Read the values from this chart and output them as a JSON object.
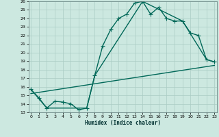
{
  "xlabel": "Humidex (Indice chaleur)",
  "bg_color": "#cce8e0",
  "grid_color": "#aaccc4",
  "line_color": "#006858",
  "xlim": [
    0,
    23
  ],
  "ylim": [
    13,
    26
  ],
  "yticks": [
    13,
    14,
    15,
    16,
    17,
    18,
    19,
    20,
    21,
    22,
    23,
    24,
    25,
    26
  ],
  "xticks": [
    0,
    1,
    2,
    3,
    4,
    5,
    6,
    7,
    8,
    9,
    10,
    11,
    12,
    13,
    14,
    15,
    16,
    17,
    18,
    19,
    20,
    21,
    22,
    23
  ],
  "line1_x": [
    0,
    1,
    2,
    3,
    4,
    5,
    6,
    7,
    8,
    9,
    10,
    11,
    12,
    13,
    14,
    15,
    16,
    17,
    18,
    19,
    20,
    21,
    22,
    23
  ],
  "line1_y": [
    15.7,
    14.7,
    13.5,
    14.3,
    14.2,
    14.0,
    13.3,
    13.5,
    17.3,
    20.8,
    22.7,
    24.0,
    24.5,
    25.8,
    26.0,
    24.5,
    25.3,
    24.0,
    23.7,
    23.7,
    22.3,
    22.0,
    19.2,
    18.9
  ],
  "line2_x": [
    0,
    2,
    7,
    8,
    14,
    19,
    22,
    23
  ],
  "line2_y": [
    15.7,
    13.5,
    13.5,
    17.3,
    26.0,
    23.7,
    19.2,
    18.9
  ],
  "line3_x": [
    0,
    23
  ],
  "line3_y": [
    15.2,
    18.5
  ],
  "marker_size": 2.5,
  "line_width": 1.0
}
